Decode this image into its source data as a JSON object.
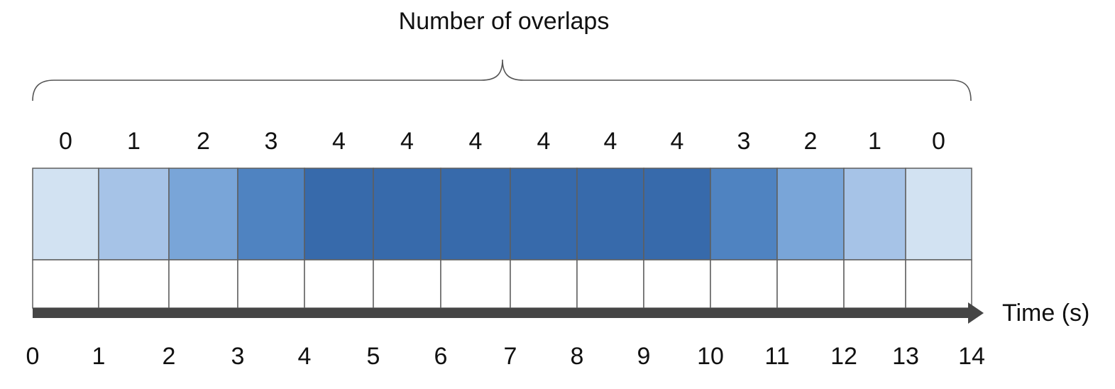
{
  "title": "Number of overlaps",
  "time_axis_label": "Time (s)",
  "overlap_counts": [
    0,
    1,
    2,
    3,
    4,
    4,
    4,
    4,
    4,
    4,
    3,
    2,
    1,
    0
  ],
  "tick_labels": [
    "0",
    "1",
    "2",
    "3",
    "4",
    "5",
    "6",
    "7",
    "8",
    "9",
    "10",
    "11",
    "12",
    "13",
    "14"
  ],
  "level_colors": [
    "#d2e2f2",
    "#a6c3e7",
    "#79a5d8",
    "#4f83c1",
    "#376aab"
  ],
  "grid_line_color": "#5e5e5e",
  "axis_color": "#454545"
}
